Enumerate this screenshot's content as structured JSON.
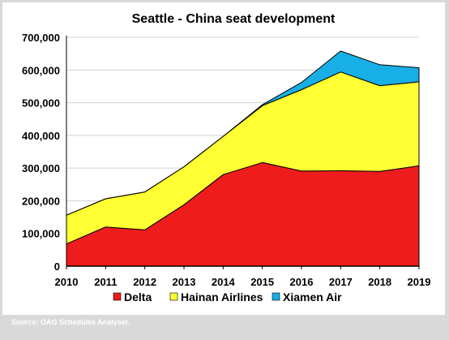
{
  "chart_data": {
    "type": "area",
    "stacked": true,
    "title": "Seattle - China seat development",
    "xlabel": "",
    "ylabel": "",
    "x": [
      "2010",
      "2011",
      "2012",
      "2013",
      "2014",
      "2015",
      "2016",
      "2017",
      "2018",
      "2019"
    ],
    "ylim": [
      0,
      700000
    ],
    "yticks": [
      0,
      100000,
      200000,
      300000,
      400000,
      500000,
      600000,
      700000
    ],
    "ytick_labels": [
      "0",
      "100,000",
      "200,000",
      "300,000",
      "400,000",
      "500,000",
      "600,000",
      "700,000"
    ],
    "grid": "horizontal",
    "legend_position": "bottom",
    "series": [
      {
        "name": "Delta",
        "color": "#ee1c1c",
        "values": [
          68000,
          120000,
          111000,
          188000,
          280000,
          317000,
          291000,
          292000,
          290000,
          307000
        ]
      },
      {
        "name": "Hainan Airlines",
        "color": "#ffff33",
        "values": [
          88000,
          86000,
          116000,
          116000,
          117000,
          174000,
          249000,
          302000,
          262000,
          257000
        ]
      },
      {
        "name": "Xiamen Air",
        "color": "#18aee6",
        "values": [
          0,
          0,
          0,
          0,
          0,
          3000,
          22000,
          64000,
          64000,
          43000
        ]
      }
    ]
  },
  "source_text": "Source: OAG Schedules Analyser."
}
